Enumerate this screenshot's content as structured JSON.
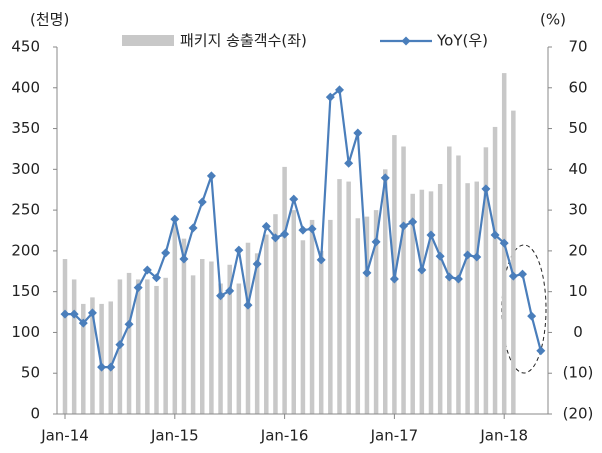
{
  "chart_data": {
    "type": "bar_line",
    "y_unit_label": "(천명)",
    "y2_unit_label": "(%)",
    "categories": [
      "Jan-14",
      null,
      null,
      null,
      null,
      null,
      null,
      null,
      null,
      null,
      null,
      null,
      "Jan-15",
      null,
      null,
      null,
      null,
      null,
      null,
      null,
      null,
      null,
      null,
      null,
      "Jan-16",
      null,
      null,
      null,
      null,
      null,
      null,
      null,
      null,
      null,
      null,
      null,
      "Jan-17",
      null,
      null,
      null,
      null,
      null,
      null,
      null,
      null,
      null,
      null,
      null,
      "Jan-18",
      null,
      null,
      null,
      null
    ],
    "series": [
      {
        "name": "패키지 송출객수(좌)",
        "type": "bar",
        "color": "#c8c8c8",
        "axis": "y",
        "values": [
          190,
          165,
          135,
          143,
          135,
          138,
          165,
          173,
          165,
          165,
          157,
          167,
          235,
          215,
          170,
          190,
          187,
          160,
          183,
          160,
          210,
          197,
          220,
          245,
          303,
          250,
          213,
          238,
          200,
          238,
          288,
          285,
          240,
          242,
          250,
          300,
          342,
          328,
          270,
          275,
          273,
          282,
          328,
          317,
          283,
          285,
          327,
          352,
          418,
          372,
          null,
          null,
          null
        ]
      },
      {
        "name": "YoY(우)",
        "type": "line",
        "color": "#4a7ebb",
        "axis": "y2",
        "values": [
          4.5,
          4.5,
          2.3,
          4.8,
          -8.5,
          -8.5,
          -3,
          2,
          11,
          15.3,
          13.4,
          19.5,
          27.8,
          18,
          25.6,
          32,
          38.4,
          9,
          10.2,
          20.2,
          6.7,
          16.8,
          26,
          23.2,
          24.1,
          32.7,
          25.1,
          25.4,
          17.8,
          57.7,
          59.5,
          41.5,
          48.9,
          14.6,
          22.2,
          37.9,
          13.1,
          26.1,
          27.1,
          15.3,
          23.9,
          18.7,
          13.6,
          13.1,
          19,
          18.5,
          35.2,
          23.9,
          21.9,
          13.8,
          14.3,
          4,
          -4.5
        ]
      }
    ],
    "ylim": [
      0,
      450
    ],
    "yticks": [
      0,
      50,
      100,
      150,
      200,
      250,
      300,
      350,
      400,
      450
    ],
    "y2lim": [
      -20,
      70
    ],
    "y2ticks": [
      {
        "value": -20,
        "label": "(20)"
      },
      {
        "value": -10,
        "label": "(10)"
      },
      0,
      10,
      20,
      30,
      40,
      50,
      60,
      70
    ]
  }
}
